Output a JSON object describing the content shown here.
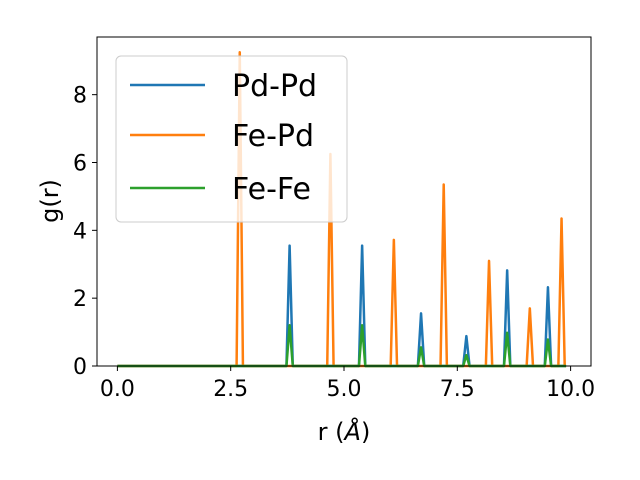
{
  "chart_data": {
    "type": "line",
    "xlabel_main": "r (",
    "xlabel_unit": "Å",
    "xlabel_close": ")",
    "ylabel": "g(r)",
    "xlim": [
      -0.45,
      10.45
    ],
    "ylim": [
      0,
      9.7
    ],
    "x_ticks": [
      0.0,
      2.5,
      5.0,
      7.5,
      10.0
    ],
    "x_tick_labels": [
      "0.0",
      "2.5",
      "5.0",
      "7.5",
      "10.0"
    ],
    "y_ticks": [
      0,
      2,
      4,
      6,
      8
    ],
    "y_tick_labels": [
      "0",
      "2",
      "4",
      "6",
      "8"
    ],
    "grid": false,
    "legend_position": "top-left",
    "x_range": [
      0.0,
      9.9
    ],
    "series": [
      {
        "name": "Pd-Pd",
        "color": "#1f77b4",
        "peaks": [
          {
            "r": 3.8,
            "g": 3.55
          },
          {
            "r": 5.4,
            "g": 3.55
          },
          {
            "r": 6.7,
            "g": 1.55
          },
          {
            "r": 7.7,
            "g": 0.88
          },
          {
            "r": 8.6,
            "g": 2.82
          },
          {
            "r": 9.5,
            "g": 2.32
          }
        ]
      },
      {
        "name": "Fe-Pd",
        "color": "#ff7f0e",
        "peaks": [
          {
            "r": 2.7,
            "g": 9.25
          },
          {
            "r": 4.7,
            "g": 6.25
          },
          {
            "r": 6.1,
            "g": 3.72
          },
          {
            "r": 7.2,
            "g": 5.35
          },
          {
            "r": 8.2,
            "g": 3.1
          },
          {
            "r": 9.1,
            "g": 1.7
          },
          {
            "r": 9.8,
            "g": 4.35
          }
        ]
      },
      {
        "name": "Fe-Fe",
        "color": "#2ca02c",
        "peaks": [
          {
            "r": 3.8,
            "g": 1.2
          },
          {
            "r": 5.4,
            "g": 1.2
          },
          {
            "r": 6.7,
            "g": 0.55
          },
          {
            "r": 7.7,
            "g": 0.32
          },
          {
            "r": 8.6,
            "g": 0.98
          },
          {
            "r": 9.5,
            "g": 0.78
          }
        ]
      }
    ]
  }
}
